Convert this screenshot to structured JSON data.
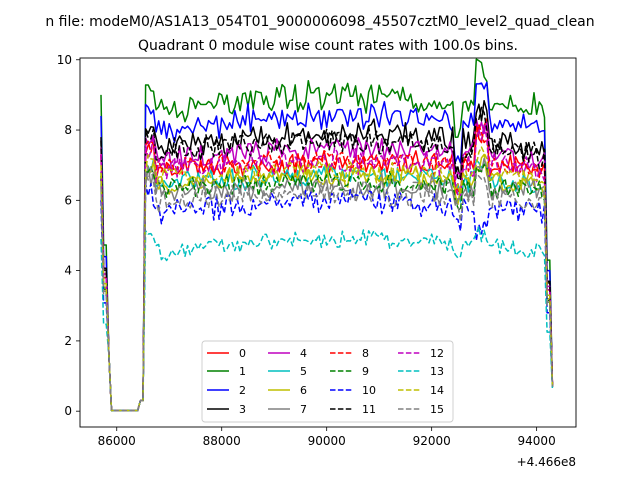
{
  "figure": {
    "suptitle": "n file: modeM0/AS1A13_054T01_9000006098_45507cztM0_level2_quad_clean",
    "title": "Quadrant 0 module wise count rates with 100.0s bins.",
    "offset_label": "+4.466e8"
  },
  "chart_data": {
    "type": "line",
    "title": "Quadrant 0 module wise count rates with 100.0s bins.",
    "xlabel": "",
    "ylabel": "",
    "x_offset": 446600000,
    "xlim": [
      85300,
      94750
    ],
    "ylim": [
      -0.45,
      10.05
    ],
    "xticks": [
      86000,
      88000,
      90000,
      92000,
      94000
    ],
    "xtick_labels": [
      "86000",
      "88000",
      "90000",
      "92000",
      "94000"
    ],
    "yticks": [
      0,
      2,
      4,
      6,
      8,
      10
    ],
    "ytick_labels": [
      "0",
      "2",
      "4",
      "6",
      "8",
      "10"
    ],
    "grid": false,
    "legend_placement": "lower center",
    "legend_columns": 4,
    "x_start": 85700,
    "x_step": 50,
    "x_count": 173,
    "series": [
      {
        "name": "0",
        "color": "#ff0000",
        "dash": "solid",
        "level": 6.9,
        "end": 0.8,
        "amp": 0.28,
        "trend": 0.15,
        "peak": 1.0
      },
      {
        "name": "1",
        "color": "#008000",
        "dash": "solid",
        "level": 8.6,
        "end": 0.7,
        "amp": 0.35,
        "trend": 0.3,
        "peak": 1.0
      },
      {
        "name": "2",
        "color": "#0000ff",
        "dash": "solid",
        "level": 8.0,
        "end": 0.75,
        "amp": 0.32,
        "trend": 0.4,
        "peak": 1.2
      },
      {
        "name": "3",
        "color": "#000000",
        "dash": "solid",
        "level": 7.4,
        "end": 0.7,
        "amp": 0.32,
        "trend": 0.5,
        "peak": 0.9
      },
      {
        "name": "4",
        "color": "#bf00bf",
        "dash": "solid",
        "level": 7.1,
        "end": 0.75,
        "amp": 0.28,
        "trend": 0.35,
        "peak": 0.8
      },
      {
        "name": "5",
        "color": "#00bfbf",
        "dash": "solid",
        "level": 6.4,
        "end": 0.7,
        "amp": 0.25,
        "trend": 0.3,
        "peak": 0.5
      },
      {
        "name": "6",
        "color": "#bfbf00",
        "dash": "solid",
        "level": 6.4,
        "end": 0.7,
        "amp": 0.25,
        "trend": 0.3,
        "peak": 0.5
      },
      {
        "name": "7",
        "color": "#808080",
        "dash": "solid",
        "level": 6.2,
        "end": 0.7,
        "amp": 0.3,
        "trend": 0.2,
        "peak": 0.5
      },
      {
        "name": "8",
        "color": "#ff0000",
        "dash": "dashed",
        "level": 6.9,
        "end": 0.75,
        "amp": 0.25,
        "trend": 0.2,
        "peak": 0.9
      },
      {
        "name": "9",
        "color": "#008000",
        "dash": "dashed",
        "level": 6.3,
        "end": 0.7,
        "amp": 0.25,
        "trend": 0.2,
        "peak": 0.6
      },
      {
        "name": "10",
        "color": "#0000ff",
        "dash": "dashed",
        "level": 5.6,
        "end": 0.7,
        "amp": 0.28,
        "trend": 0.4,
        "peak": -0.6
      },
      {
        "name": "11",
        "color": "#000000",
        "dash": "dashed",
        "level": 7.3,
        "end": 0.75,
        "amp": 0.3,
        "trend": 0.4,
        "peak": 0.9
      },
      {
        "name": "12",
        "color": "#bf00bf",
        "dash": "dashed",
        "level": 6.9,
        "end": 0.75,
        "amp": 0.28,
        "trend": 0.25,
        "peak": 0.8
      },
      {
        "name": "13",
        "color": "#00bfbf",
        "dash": "dashed",
        "level": 4.5,
        "end": 0.65,
        "amp": 0.2,
        "trend": 0.4,
        "peak": 0.3
      },
      {
        "name": "14",
        "color": "#bfbf00",
        "dash": "dashed",
        "level": 6.6,
        "end": 0.7,
        "amp": 0.25,
        "trend": 0.2,
        "peak": 0.5
      },
      {
        "name": "15",
        "color": "#808080",
        "dash": "dashed",
        "level": 6.0,
        "end": 0.7,
        "amp": 0.3,
        "trend": 0.2,
        "peak": 0.5
      }
    ]
  }
}
